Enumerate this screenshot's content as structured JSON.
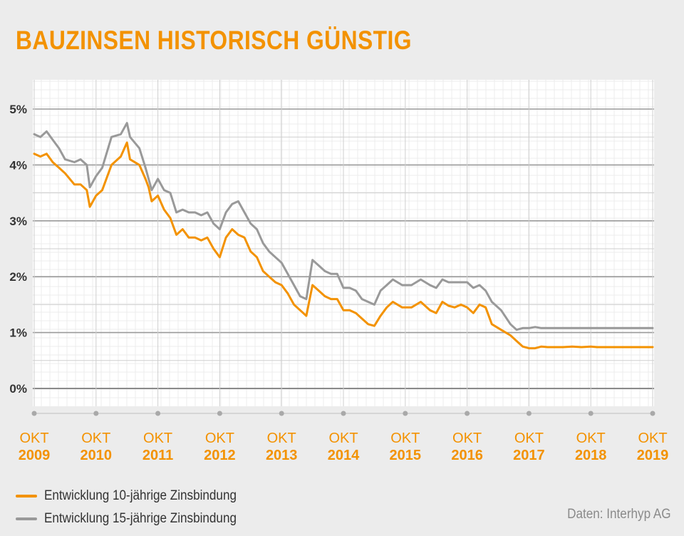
{
  "title": "BAUZINSEN HISTORISCH GÜNSTIG",
  "colors": {
    "accent": "#f39200",
    "grey": "#999999",
    "background": "#ececec",
    "plot_background": "#ffffff"
  },
  "legend": [
    {
      "label": "Entwicklung 10-jährige Zinsbindung",
      "color": "#f39200"
    },
    {
      "label": "Entwicklung 15-jährige Zinsbindung",
      "color": "#999999"
    }
  ],
  "source": "Daten: Interhyp AG",
  "chart_data": {
    "type": "line",
    "title": "BAUZINSEN HISTORISCH GÜNSTIG",
    "ylim": [
      0,
      5
    ],
    "yticks": [
      "0%",
      "1%",
      "2%",
      "3%",
      "4%",
      "5%"
    ],
    "xlim": [
      2009.75,
      2019.75
    ],
    "xticks": [
      {
        "top": "OKT",
        "bottom": "2009",
        "x": 2009.75
      },
      {
        "top": "OKT",
        "bottom": "2010",
        "x": 2010.75
      },
      {
        "top": "OKT",
        "bottom": "2011",
        "x": 2011.75
      },
      {
        "top": "OKT",
        "bottom": "2012",
        "x": 2012.75
      },
      {
        "top": "OKT",
        "bottom": "2013",
        "x": 2013.75
      },
      {
        "top": "OKT",
        "bottom": "2014",
        "x": 2014.75
      },
      {
        "top": "OKT",
        "bottom": "2015",
        "x": 2015.75
      },
      {
        "top": "OKT",
        "bottom": "2016",
        "x": 2016.75
      },
      {
        "top": "OKT",
        "bottom": "2017",
        "x": 2017.75
      },
      {
        "top": "OKT",
        "bottom": "2018",
        "x": 2018.75
      },
      {
        "top": "OKT",
        "bottom": "2019",
        "x": 2019.75
      }
    ],
    "grid": true,
    "legend_position": "bottom-left",
    "series": [
      {
        "name": "Entwicklung 10-jährige Zinsbindung",
        "color": "#f39200",
        "x": [
          2009.75,
          2009.85,
          2009.95,
          2010.05,
          2010.15,
          2010.25,
          2010.4,
          2010.5,
          2010.6,
          2010.65,
          2010.75,
          2010.85,
          2011.0,
          2011.15,
          2011.25,
          2011.3,
          2011.45,
          2011.55,
          2011.6,
          2011.65,
          2011.75,
          2011.85,
          2011.95,
          2012.05,
          2012.15,
          2012.25,
          2012.35,
          2012.45,
          2012.55,
          2012.65,
          2012.75,
          2012.85,
          2012.95,
          2013.05,
          2013.15,
          2013.25,
          2013.35,
          2013.45,
          2013.55,
          2013.65,
          2013.75,
          2013.85,
          2013.95,
          2014.05,
          2014.15,
          2014.25,
          2014.35,
          2014.45,
          2014.55,
          2014.65,
          2014.75,
          2014.85,
          2014.95,
          2015.05,
          2015.15,
          2015.25,
          2015.35,
          2015.45,
          2015.55,
          2015.7,
          2015.85,
          2016.0,
          2016.15,
          2016.25,
          2016.35,
          2016.45,
          2016.55,
          2016.65,
          2016.75,
          2016.85,
          2016.95,
          2017.05,
          2017.15,
          2017.3,
          2017.45,
          2017.55,
          2017.65,
          2017.75,
          2017.85,
          2017.95,
          2018.05,
          2018.15,
          2018.3,
          2018.45,
          2018.6,
          2018.75,
          2018.85,
          2018.95,
          2019.05,
          2019.15,
          2019.25,
          2019.35,
          2019.45,
          2019.55,
          2019.65,
          2019.75
        ],
        "values": [
          4.2,
          4.15,
          4.2,
          4.05,
          3.95,
          3.85,
          3.65,
          3.65,
          3.55,
          3.25,
          3.45,
          3.55,
          4.0,
          4.15,
          4.4,
          4.1,
          4.0,
          3.75,
          3.6,
          3.35,
          3.45,
          3.2,
          3.05,
          2.75,
          2.85,
          2.7,
          2.7,
          2.65,
          2.7,
          2.5,
          2.35,
          2.7,
          2.85,
          2.75,
          2.7,
          2.45,
          2.35,
          2.1,
          2.0,
          1.9,
          1.85,
          1.7,
          1.5,
          1.4,
          1.3,
          1.85,
          1.75,
          1.65,
          1.6,
          1.6,
          1.4,
          1.4,
          1.35,
          1.25,
          1.15,
          1.12,
          1.3,
          1.45,
          1.55,
          1.45,
          1.45,
          1.55,
          1.4,
          1.35,
          1.55,
          1.48,
          1.45,
          1.5,
          1.45,
          1.35,
          1.5,
          1.45,
          1.15,
          1.05,
          0.95,
          0.85,
          0.75,
          0.72,
          0.72,
          0.75,
          0.74,
          0.74,
          0.74,
          0.75,
          0.74,
          0.75,
          0.74,
          0.74,
          0.74,
          0.74,
          0.74,
          0.74,
          0.74,
          0.74,
          0.74,
          0.74
        ]
      },
      {
        "name": "Entwicklung 15-jährige Zinsbindung",
        "color": "#999999",
        "x": [
          2009.75,
          2009.85,
          2009.95,
          2010.05,
          2010.15,
          2010.25,
          2010.4,
          2010.5,
          2010.6,
          2010.65,
          2010.75,
          2010.85,
          2011.0,
          2011.15,
          2011.25,
          2011.3,
          2011.45,
          2011.55,
          2011.6,
          2011.65,
          2011.75,
          2011.85,
          2011.95,
          2012.05,
          2012.15,
          2012.25,
          2012.35,
          2012.45,
          2012.55,
          2012.65,
          2012.75,
          2012.85,
          2012.95,
          2013.05,
          2013.15,
          2013.25,
          2013.35,
          2013.45,
          2013.55,
          2013.65,
          2013.75,
          2013.85,
          2013.95,
          2014.05,
          2014.15,
          2014.25,
          2014.35,
          2014.45,
          2014.55,
          2014.65,
          2014.75,
          2014.85,
          2014.95,
          2015.05,
          2015.15,
          2015.25,
          2015.35,
          2015.45,
          2015.55,
          2015.7,
          2015.85,
          2016.0,
          2016.15,
          2016.25,
          2016.35,
          2016.45,
          2016.55,
          2016.65,
          2016.75,
          2016.85,
          2016.95,
          2017.05,
          2017.15,
          2017.3,
          2017.45,
          2017.55,
          2017.65,
          2017.75,
          2017.85,
          2017.95,
          2018.05,
          2018.15,
          2018.3,
          2018.45,
          2018.6,
          2018.75,
          2018.85,
          2018.95,
          2019.05,
          2019.15,
          2019.25,
          2019.35,
          2019.45,
          2019.55,
          2019.65,
          2019.75
        ],
        "values": [
          4.55,
          4.5,
          4.6,
          4.45,
          4.3,
          4.1,
          4.05,
          4.1,
          4.0,
          3.6,
          3.8,
          3.95,
          4.5,
          4.55,
          4.75,
          4.5,
          4.3,
          3.95,
          3.75,
          3.55,
          3.75,
          3.55,
          3.5,
          3.15,
          3.2,
          3.15,
          3.15,
          3.1,
          3.15,
          2.95,
          2.85,
          3.15,
          3.3,
          3.35,
          3.15,
          2.95,
          2.85,
          2.6,
          2.45,
          2.35,
          2.25,
          2.05,
          1.85,
          1.65,
          1.6,
          2.3,
          2.2,
          2.1,
          2.05,
          2.05,
          1.8,
          1.8,
          1.75,
          1.6,
          1.55,
          1.5,
          1.75,
          1.85,
          1.95,
          1.85,
          1.85,
          1.95,
          1.85,
          1.8,
          1.95,
          1.9,
          1.9,
          1.9,
          1.9,
          1.8,
          1.85,
          1.75,
          1.55,
          1.4,
          1.15,
          1.05,
          1.08,
          1.08,
          1.1,
          1.08,
          1.08,
          1.08,
          1.08,
          1.08,
          1.08,
          1.08,
          1.08,
          1.08,
          1.08,
          1.08,
          1.08,
          1.08,
          1.08,
          1.08,
          1.08,
          1.08
        ]
      }
    ]
  }
}
